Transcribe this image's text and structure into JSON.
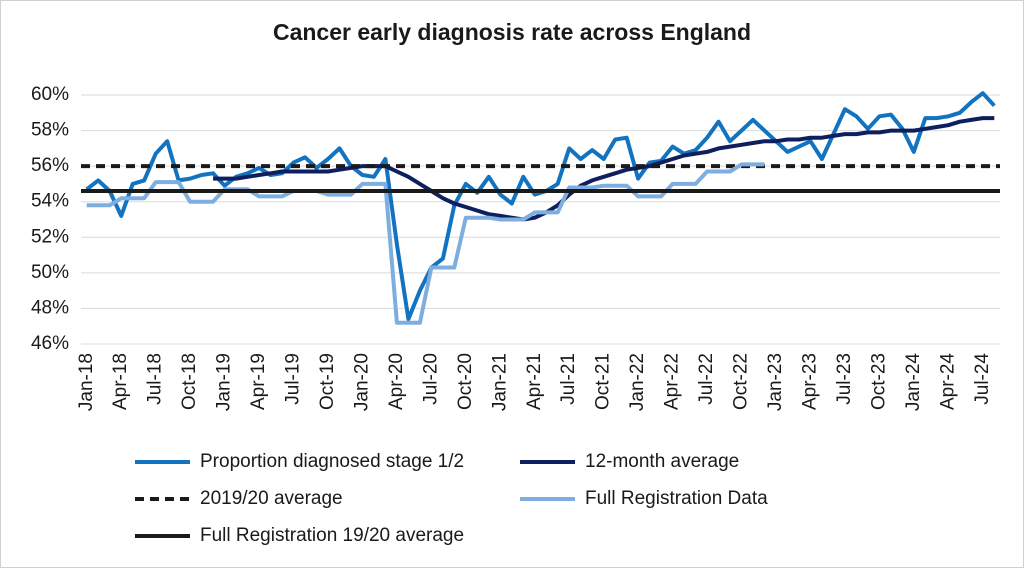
{
  "chart_data": {
    "type": "line",
    "title": "Cancer early diagnosis rate across England",
    "categories": [
      "Jan-18",
      null,
      null,
      "Apr-18",
      null,
      null,
      "Jul-18",
      null,
      null,
      "Oct-18",
      null,
      null,
      "Jan-19",
      null,
      null,
      "Apr-19",
      null,
      null,
      "Jul-19",
      null,
      null,
      "Oct-19",
      null,
      null,
      "Jan-20",
      null,
      null,
      "Apr-20",
      null,
      null,
      "Jul-20",
      null,
      null,
      "Oct-20",
      null,
      null,
      "Jan-21",
      null,
      null,
      "Apr-21",
      null,
      null,
      "Jul-21",
      null,
      null,
      "Oct-21",
      null,
      null,
      "Jan-22",
      null,
      null,
      "Apr-22",
      null,
      null,
      "Jul-22",
      null,
      null,
      "Oct-22",
      null,
      null,
      "Jan-23",
      null,
      null,
      "Apr-23",
      null,
      null,
      "Jul-23",
      null,
      null,
      "Oct-23",
      null,
      null,
      "Jan-24",
      null,
      null,
      "Apr-24",
      null,
      null,
      "Jul-24",
      null
    ],
    "series": [
      {
        "name": "Proportion diagnosed stage 1/2",
        "color": "#1273c0",
        "values": [
          54.7,
          55.2,
          54.6,
          53.2,
          55.0,
          55.2,
          56.7,
          57.4,
          55.2,
          55.3,
          55.5,
          55.6,
          54.9,
          55.4,
          55.6,
          55.9,
          55.5,
          55.6,
          56.2,
          56.5,
          55.9,
          56.4,
          57.0,
          56.0,
          55.5,
          55.4,
          56.4,
          51.6,
          47.4,
          49.0,
          50.3,
          50.8,
          53.8,
          55.0,
          54.5,
          55.4,
          54.4,
          53.9,
          55.4,
          54.4,
          54.6,
          55.0,
          57.0,
          56.4,
          56.9,
          56.4,
          57.5,
          57.6,
          55.3,
          56.2,
          56.3,
          57.1,
          56.7,
          56.9,
          57.6,
          58.5,
          57.4,
          58.0,
          58.6,
          58.0,
          57.4,
          56.8,
          57.1,
          57.4,
          56.4,
          57.8,
          59.2,
          58.8,
          58.1,
          58.8,
          58.9,
          58.1,
          56.8,
          58.7,
          58.7,
          58.8,
          59.0,
          59.6,
          60.1,
          59.4
        ]
      },
      {
        "name": "12-month average",
        "color": "#0d1f5e",
        "values": [
          null,
          null,
          null,
          null,
          null,
          null,
          null,
          null,
          null,
          null,
          null,
          55.3,
          55.3,
          55.3,
          55.4,
          55.5,
          55.6,
          55.7,
          55.7,
          55.7,
          55.7,
          55.7,
          55.8,
          55.9,
          56.0,
          56.0,
          56.0,
          55.7,
          55.4,
          55.0,
          54.6,
          54.2,
          53.9,
          53.7,
          53.5,
          53.3,
          53.2,
          53.1,
          53.0,
          53.1,
          53.4,
          53.8,
          54.4,
          54.9,
          55.2,
          55.4,
          55.6,
          55.8,
          55.9,
          56.0,
          56.2,
          56.4,
          56.6,
          56.7,
          56.8,
          57.0,
          57.1,
          57.2,
          57.3,
          57.4,
          57.4,
          57.5,
          57.5,
          57.6,
          57.6,
          57.7,
          57.8,
          57.8,
          57.9,
          57.9,
          58.0,
          58.0,
          58.0,
          58.1,
          58.2,
          58.3,
          58.5,
          58.6,
          58.7,
          58.7
        ]
      },
      {
        "name": "2019/20 average",
        "color": "#1a1a1a",
        "dash": true,
        "value": 56.0
      },
      {
        "name": "Full Registration Data",
        "color": "#7eaee0",
        "values": [
          53.8,
          53.8,
          53.8,
          54.2,
          54.2,
          54.2,
          55.1,
          55.1,
          55.1,
          54.0,
          54.0,
          54.0,
          54.7,
          54.7,
          54.7,
          54.3,
          54.3,
          54.3,
          54.6,
          54.6,
          54.6,
          54.4,
          54.4,
          54.4,
          55.0,
          55.0,
          55.0,
          47.2,
          47.2,
          47.2,
          50.3,
          50.3,
          50.3,
          53.1,
          53.1,
          53.1,
          53.0,
          53.0,
          53.0,
          53.4,
          53.4,
          53.4,
          54.8,
          54.8,
          54.8,
          54.9,
          54.9,
          54.9,
          54.3,
          54.3,
          54.3,
          55.0,
          55.0,
          55.0,
          55.7,
          55.7,
          55.7,
          56.1,
          56.1,
          56.1,
          null,
          null,
          null,
          null,
          null,
          null,
          null,
          null,
          null,
          null,
          null,
          null,
          null,
          null,
          null,
          null,
          null,
          null,
          null,
          null
        ]
      },
      {
        "name": "Full Registration 19/20 average",
        "color": "#1a1a1a",
        "dash": false,
        "value": 54.6
      }
    ],
    "ylim": [
      46,
      60
    ],
    "yticks": [
      {
        "value": 46,
        "label": "46%"
      },
      {
        "value": 48,
        "label": "48%"
      },
      {
        "value": 50,
        "label": "50%"
      },
      {
        "value": 52,
        "label": "52%"
      },
      {
        "value": 54,
        "label": "54%"
      },
      {
        "value": 56,
        "label": "56%"
      },
      {
        "value": 58,
        "label": "58%"
      },
      {
        "value": 60,
        "label": "60%"
      }
    ],
    "grid": true,
    "legend": "bottom"
  }
}
